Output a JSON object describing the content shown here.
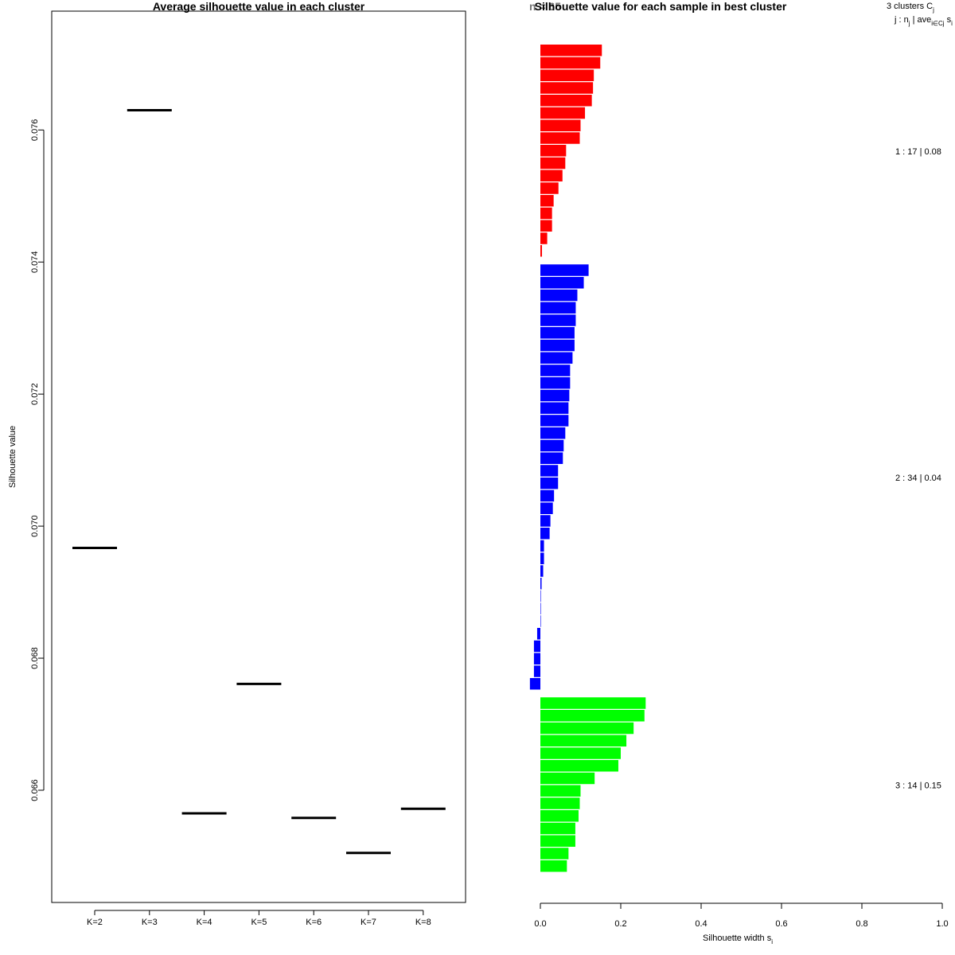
{
  "chart_data": [
    {
      "type": "scatter",
      "marker": "horizontal-segment",
      "title": "Average silhouette value in each cluster",
      "xlabel": "",
      "ylabel": "Silhouette value",
      "categories": [
        "K=2",
        "K=3",
        "K=4",
        "K=5",
        "K=6",
        "K=7",
        "K=8"
      ],
      "values": [
        0.06967,
        0.0763,
        0.06565,
        0.06761,
        0.06558,
        0.06505,
        0.06572
      ],
      "ylim": [
        0.0643,
        0.0778
      ],
      "yticks": [
        0.066,
        0.068,
        0.07,
        0.072,
        0.074,
        0.076
      ],
      "ytick_labels": [
        "0.066",
        "0.068",
        "0.070",
        "0.072",
        "0.074",
        "0.076"
      ],
      "grid": false,
      "color": "#000000"
    },
    {
      "type": "bar",
      "orientation": "horizontal",
      "title": "Silhouette value for each sample in best cluster",
      "title_overlap_text": "n = 65",
      "xlabel": "Silhouette width s",
      "xlabel_subscript": "i",
      "xlim": [
        0,
        1
      ],
      "xticks": [
        0.0,
        0.2,
        0.4,
        0.6,
        0.8,
        1.0
      ],
      "xtick_labels": [
        "0.0",
        "0.2",
        "0.4",
        "0.6",
        "0.8",
        "1.0"
      ],
      "grid": false,
      "legend_header": {
        "line1": "3  clusters  C",
        "line1_sub": "j",
        "line2": "j :  n",
        "line2_sub": "j",
        "line2_rest": " | ave",
        "line2_rest_sub": "i∈Cj",
        "line2_tail": "  s",
        "line2_tail_sub": "i"
      },
      "clusters": [
        {
          "id": 1,
          "n": 17,
          "avg": 0.08,
          "label": "1 :   17  |  0.08",
          "color": "#ff0000",
          "values": [
            0.153,
            0.149,
            0.133,
            0.131,
            0.128,
            0.111,
            0.1,
            0.098,
            0.064,
            0.062,
            0.055,
            0.045,
            0.033,
            0.029,
            0.029,
            0.017,
            0.004
          ]
        },
        {
          "id": 2,
          "n": 34,
          "avg": 0.04,
          "label": "2 :   34  |  0.04",
          "color": "#0000ff",
          "values": [
            0.12,
            0.108,
            0.092,
            0.088,
            0.088,
            0.085,
            0.085,
            0.08,
            0.074,
            0.074,
            0.072,
            0.07,
            0.07,
            0.062,
            0.058,
            0.056,
            0.044,
            0.044,
            0.034,
            0.031,
            0.025,
            0.023,
            0.009,
            0.009,
            0.007,
            0.003,
            0.001,
            0.0005,
            0.0003,
            -0.008,
            -0.016,
            -0.016,
            -0.016,
            -0.026
          ]
        },
        {
          "id": 3,
          "n": 14,
          "avg": 0.15,
          "label": "3 :   14  |  0.15",
          "color": "#00ff00",
          "values": [
            0.262,
            0.259,
            0.232,
            0.214,
            0.2,
            0.194,
            0.135,
            0.1,
            0.098,
            0.095,
            0.087,
            0.087,
            0.07,
            0.066
          ]
        }
      ]
    }
  ]
}
